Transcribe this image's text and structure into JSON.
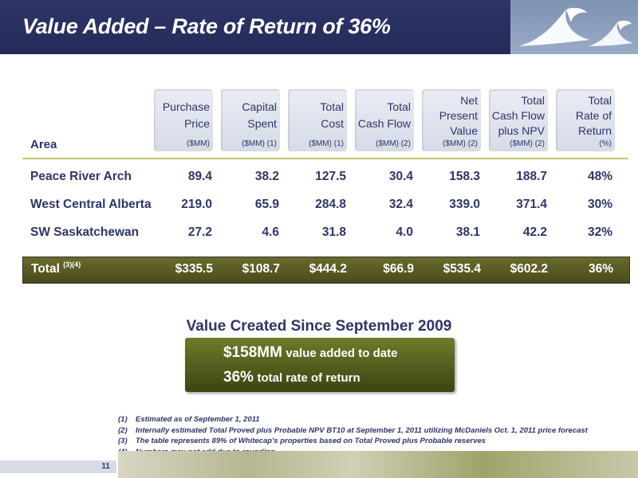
{
  "slide": {
    "title": "Value Added – Rate of Return of 36%",
    "page_number": "11"
  },
  "table": {
    "area_header": "Area",
    "columns": [
      {
        "lines": [
          "Purchase",
          "Price"
        ],
        "unit": "($MM)"
      },
      {
        "lines": [
          "Capital",
          "Spent"
        ],
        "unit": "($MM) (1)"
      },
      {
        "lines": [
          "Total",
          "Cost"
        ],
        "unit": "($MM) (1)"
      },
      {
        "lines": [
          "Total",
          "Cash Flow"
        ],
        "unit": "($MM) (2)"
      },
      {
        "lines": [
          "Net",
          "Present",
          "Value"
        ],
        "unit": "($MM) (2)"
      },
      {
        "lines": [
          "Total",
          "Cash Flow",
          "plus NPV"
        ],
        "unit": "($MM) (2)"
      },
      {
        "lines": [
          "Total",
          "Rate of",
          "Return"
        ],
        "unit": "(%)"
      }
    ],
    "rows": [
      {
        "name": "Peace River Arch",
        "values": [
          "89.4",
          "38.2",
          "127.5",
          "30.4",
          "158.3",
          "188.7",
          "48%"
        ]
      },
      {
        "name": "West Central Alberta",
        "values": [
          "219.0",
          "65.9",
          "284.8",
          "32.4",
          "339.0",
          "371.4",
          "30%"
        ]
      },
      {
        "name": "SW Saskatchewan",
        "values": [
          "27.2",
          "4.6",
          "31.8",
          "4.0",
          "38.1",
          "42.2",
          "32%"
        ]
      }
    ],
    "total": {
      "name": "Total",
      "note": "(3)(4)",
      "values": [
        "$335.5",
        "$108.7",
        "$444.2",
        "$66.9",
        "$535.4",
        "$602.2",
        "36%"
      ]
    }
  },
  "value_box": {
    "title": "Value Created Since September 2009",
    "line1_big": "$158MM",
    "line1_small": "value added to date",
    "line2_big": "36%",
    "line2_small": "total rate of return"
  },
  "footnotes": [
    {
      "num": "(1)",
      "text": "Estimated as of September 1, 2011"
    },
    {
      "num": "(2)",
      "text": "Internally estimated Total Proved plus Probable NPV BT10 at September 1, 2011 utilizing McDaniels Oct. 1, 2011 price forecast"
    },
    {
      "num": "(3)",
      "text": "The table represents 89% of Whitecap's properties based on Total Proved plus Probable reserves"
    },
    {
      "num": "(4)",
      "text": "Numbers may not add due to rounding"
    }
  ],
  "colors": {
    "navy": "#2e3568",
    "olive": "#525c1c",
    "header_cell": "#dde1ec"
  }
}
